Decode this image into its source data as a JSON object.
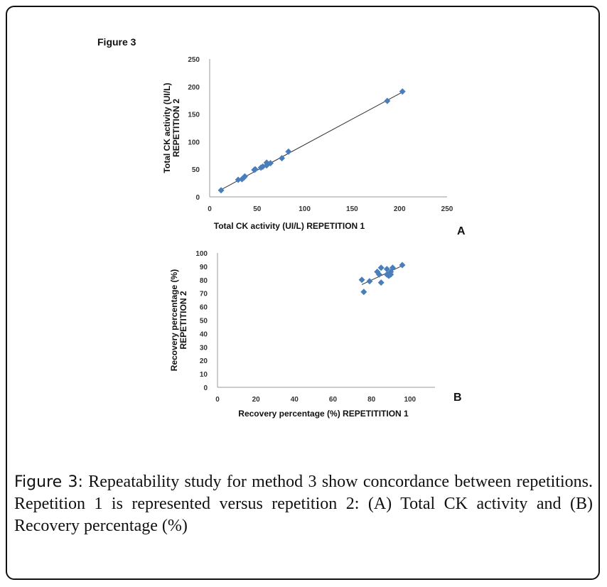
{
  "figure_label": "Figure 3",
  "caption": {
    "label": "Figure 3:",
    "text": " Repeatability study for method 3 show concordance between repetitions. Repetition 1 is represented versus repetition 2: (A) Total CK activity and (B) Recovery percentage (%)"
  },
  "chart_data": [
    {
      "type": "scatter",
      "panel": "A",
      "xlabel": "Total CK activity (UI/L) REPETITION 1",
      "ylabel": [
        "Total CK activity (UI/L)",
        "REPETITION 2"
      ],
      "xlim": [
        0,
        250
      ],
      "ylim": [
        0,
        250
      ],
      "xticks": [
        0,
        50,
        100,
        150,
        200,
        250
      ],
      "yticks": [
        0,
        50,
        100,
        150,
        200,
        250
      ],
      "grid": false,
      "marker_color": "#4a7ebb",
      "trendline": [
        [
          12,
          13
        ],
        [
          203,
          190
        ]
      ],
      "points": [
        [
          12,
          12
        ],
        [
          30,
          31
        ],
        [
          34,
          32
        ],
        [
          36,
          35
        ],
        [
          37,
          37
        ],
        [
          47,
          49
        ],
        [
          48,
          50
        ],
        [
          54,
          53
        ],
        [
          56,
          55
        ],
        [
          60,
          57
        ],
        [
          60,
          62
        ],
        [
          64,
          61
        ],
        [
          76,
          70
        ],
        [
          83,
          82
        ],
        [
          187,
          174
        ],
        [
          203,
          191
        ]
      ]
    },
    {
      "type": "scatter",
      "panel": "B",
      "xlabel": "Recovery percentage (%) REPETITITION 1",
      "ylabel": [
        "Recovery percentage (%)",
        "REPETITION 2"
      ],
      "xlim": [
        0,
        113
      ],
      "ylim": [
        0,
        100
      ],
      "xticks": [
        0,
        20,
        40,
        60,
        80,
        100
      ],
      "yticks": [
        0,
        10,
        20,
        30,
        40,
        50,
        60,
        70,
        80,
        90,
        100
      ],
      "grid": false,
      "marker_color": "#4a7ebb",
      "trendline": [
        [
          75,
          76.5
        ],
        [
          96,
          90.5
        ]
      ],
      "points": [
        [
          75,
          80
        ],
        [
          76,
          71
        ],
        [
          79,
          79
        ],
        [
          83,
          86
        ],
        [
          84,
          84
        ],
        [
          85,
          89
        ],
        [
          85,
          78
        ],
        [
          88,
          88
        ],
        [
          88,
          84
        ],
        [
          89,
          83
        ],
        [
          90,
          84
        ],
        [
          90,
          86
        ],
        [
          91,
          89
        ],
        [
          96,
          91
        ]
      ]
    }
  ]
}
